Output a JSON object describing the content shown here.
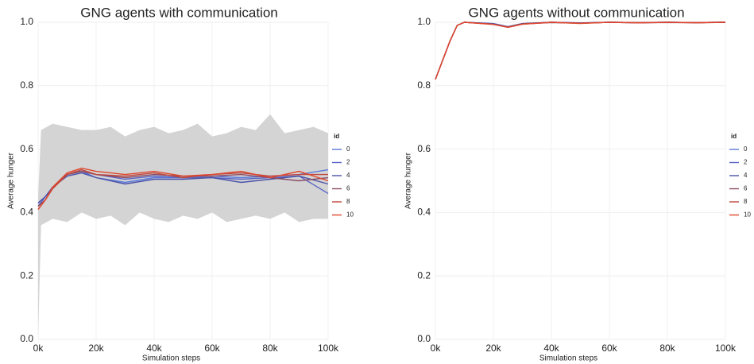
{
  "chart_data": [
    {
      "type": "line",
      "title": "GNG agents with communication",
      "xlabel": "Simulation steps",
      "ylabel": "Average hunger",
      "xlim": [
        0,
        100000
      ],
      "ylim": [
        0,
        1
      ],
      "grid": true,
      "legend_title": "id",
      "xticks": [
        {
          "value": 0,
          "label": "0k"
        },
        {
          "value": 20000,
          "label": "20k"
        },
        {
          "value": 40000,
          "label": "40k"
        },
        {
          "value": 60000,
          "label": "60k"
        },
        {
          "value": 80000,
          "label": "80k"
        },
        {
          "value": 100000,
          "label": "100k"
        }
      ],
      "yticks": [
        {
          "value": 0,
          "label": "0.0"
        },
        0.2,
        0.4,
        0.6,
        0.8,
        {
          "value": 1,
          "label": "1.0"
        }
      ],
      "band": {
        "color": "#d4d4d4",
        "x": [
          0,
          1000,
          5000,
          10000,
          15000,
          20000,
          25000,
          30000,
          35000,
          40000,
          45000,
          50000,
          55000,
          60000,
          65000,
          70000,
          75000,
          80000,
          85000,
          90000,
          95000,
          100000
        ],
        "lower": [
          0,
          0.36,
          0.38,
          0.37,
          0.4,
          0.38,
          0.39,
          0.36,
          0.4,
          0.38,
          0.37,
          0.39,
          0.38,
          0.4,
          0.37,
          0.38,
          0.39,
          0.38,
          0.4,
          0.37,
          0.38,
          0.38
        ],
        "upper": [
          0.45,
          0.66,
          0.68,
          0.67,
          0.66,
          0.66,
          0.67,
          0.64,
          0.66,
          0.67,
          0.65,
          0.66,
          0.68,
          0.64,
          0.65,
          0.67,
          0.66,
          0.71,
          0.65,
          0.66,
          0.67,
          0.65
        ]
      },
      "x": [
        0,
        2500,
        5000,
        10000,
        15000,
        20000,
        30000,
        40000,
        50000,
        60000,
        70000,
        80000,
        90000,
        100000
      ],
      "series": [
        {
          "name": "0",
          "color": "#5a78dc",
          "values": [
            0.43,
            0.45,
            0.48,
            0.52,
            0.53,
            0.51,
            0.495,
            0.51,
            0.51,
            0.515,
            0.51,
            0.515,
            0.52,
            0.535
          ]
        },
        {
          "name": "2",
          "color": "#5a66c6",
          "values": [
            0.42,
            0.45,
            0.48,
            0.52,
            0.53,
            0.52,
            0.505,
            0.515,
            0.51,
            0.51,
            0.505,
            0.51,
            0.515,
            0.46
          ]
        },
        {
          "name": "4",
          "color": "#4a52a8",
          "values": [
            0.43,
            0.45,
            0.48,
            0.515,
            0.525,
            0.51,
            0.49,
            0.505,
            0.505,
            0.51,
            0.495,
            0.505,
            0.515,
            0.49
          ]
        },
        {
          "name": "6",
          "color": "#8a4a62",
          "values": [
            0.42,
            0.44,
            0.48,
            0.52,
            0.53,
            0.52,
            0.51,
            0.52,
            0.515,
            0.515,
            0.52,
            0.51,
            0.5,
            0.51
          ]
        },
        {
          "name": "8",
          "color": "#c0483e",
          "values": [
            0.41,
            0.44,
            0.475,
            0.52,
            0.535,
            0.52,
            0.515,
            0.525,
            0.51,
            0.52,
            0.525,
            0.515,
            0.52,
            0.52
          ]
        },
        {
          "name": "10",
          "color": "#e0462c",
          "values": [
            0.41,
            0.44,
            0.48,
            0.525,
            0.54,
            0.53,
            0.52,
            0.53,
            0.515,
            0.52,
            0.53,
            0.51,
            0.53,
            0.5
          ]
        }
      ]
    },
    {
      "type": "line",
      "title": "GNG agents without communication",
      "xlabel": "Simulation steps",
      "ylabel": "Average hunger",
      "xlim": [
        0,
        100000
      ],
      "ylim": [
        0,
        1
      ],
      "grid": true,
      "legend_title": "id",
      "xticks": [
        {
          "value": 0,
          "label": "0k"
        },
        {
          "value": 20000,
          "label": "20k"
        },
        {
          "value": 40000,
          "label": "40k"
        },
        {
          "value": 60000,
          "label": "60k"
        },
        {
          "value": 80000,
          "label": "80k"
        },
        {
          "value": 100000,
          "label": "100k"
        }
      ],
      "yticks": [
        {
          "value": 0,
          "label": "0.0"
        },
        0.2,
        0.4,
        0.6,
        0.8,
        {
          "value": 1,
          "label": "1.0"
        }
      ],
      "x": [
        0,
        2500,
        5000,
        7500,
        10000,
        20000,
        25000,
        30000,
        40000,
        50000,
        60000,
        70000,
        80000,
        90000,
        100000
      ],
      "series": [
        {
          "name": "0",
          "color": "#5a78dc",
          "values": [
            0.82,
            0.88,
            0.94,
            0.99,
            1.0,
            0.996,
            0.986,
            0.995,
            1.0,
            0.998,
            1.0,
            0.999,
            1.0,
            0.999,
            1.0
          ]
        },
        {
          "name": "2",
          "color": "#5a66c6",
          "values": [
            0.82,
            0.88,
            0.94,
            0.99,
            1.0,
            0.995,
            0.985,
            0.995,
            1.0,
            0.997,
            1.0,
            0.999,
            1.0,
            0.999,
            1.0
          ]
        },
        {
          "name": "4",
          "color": "#4a52a8",
          "values": [
            0.82,
            0.88,
            0.94,
            0.99,
            1.0,
            0.995,
            0.986,
            0.996,
            1.0,
            0.998,
            1.0,
            0.998,
            1.0,
            0.999,
            1.0
          ]
        },
        {
          "name": "6",
          "color": "#8a4a62",
          "values": [
            0.82,
            0.88,
            0.94,
            0.99,
            1.0,
            0.994,
            0.985,
            0.995,
            0.999,
            0.997,
            1.0,
            0.999,
            0.999,
            0.999,
            1.0
          ]
        },
        {
          "name": "8",
          "color": "#c0483e",
          "values": [
            0.82,
            0.88,
            0.94,
            0.99,
            1.0,
            0.994,
            0.984,
            0.994,
            1.0,
            0.997,
            1.0,
            0.999,
            1.0,
            0.998,
            1.0
          ]
        },
        {
          "name": "10",
          "color": "#e0462c",
          "values": [
            0.82,
            0.88,
            0.94,
            0.99,
            1.0,
            0.993,
            0.984,
            0.994,
            1.0,
            0.996,
            1.0,
            0.998,
            1.0,
            0.999,
            1.0
          ]
        }
      ]
    }
  ]
}
